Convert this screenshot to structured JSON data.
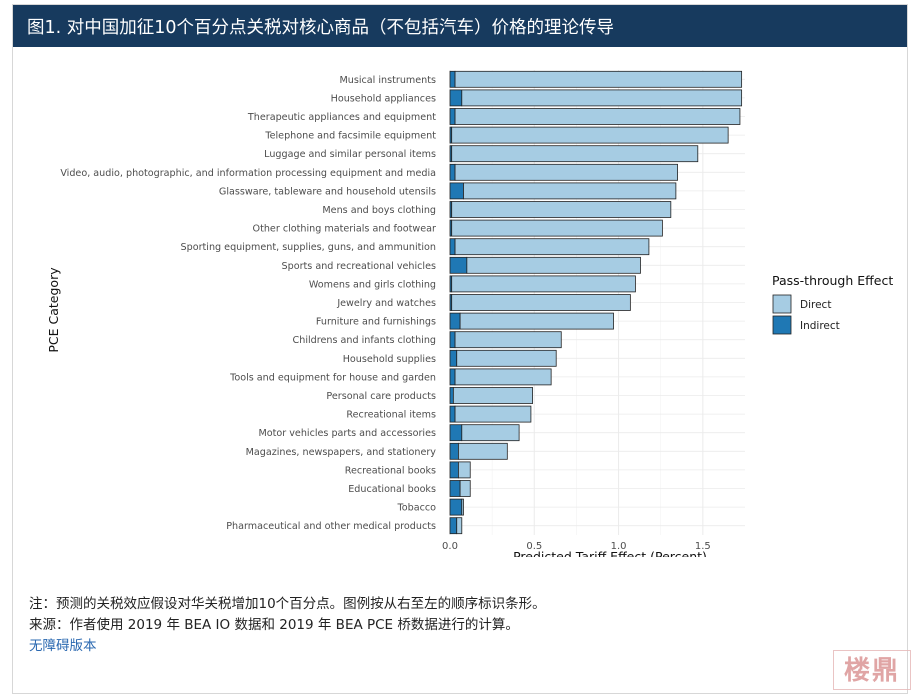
{
  "figure": {
    "title": "图1. 对中国加征10个百分点关税对核心商品（不包括汽车）价格的理论传导",
    "note": "注：预测的关税效应假设对华关税增加10个百分点。图例按从右至左的顺序标识条形。",
    "source": "来源：作者使用 2019 年 BEA IO 数据和 2019 年 BEA PCE 桥数据进行的计算。",
    "accessible_link": "无障碍版本",
    "watermark": "楼鼎"
  },
  "colors": {
    "direct": "#a6cce3",
    "indirect": "#1f78b4",
    "bar_stroke": "#222222",
    "grid": "#ebebeb",
    "title_bg": "#173a5e"
  },
  "chart_data": {
    "type": "bar",
    "orientation": "horizontal",
    "stacked": true,
    "title": "",
    "xlabel": "Predicted Tariff Effect (Percent)",
    "ylabel": "PCE Category",
    "xlim": [
      0,
      1.75
    ],
    "xticks": [
      "0.0",
      "0.5",
      "1.0",
      "1.5"
    ],
    "xtick_values": [
      0,
      0.5,
      1.0,
      1.5
    ],
    "grid": true,
    "legend": {
      "title": "Pass-through Effect",
      "position": "right"
    },
    "categories": [
      "Musical instruments",
      "Household appliances",
      "Therapeutic appliances and equipment",
      "Telephone and facsimile equipment",
      "Luggage and similar personal items",
      "Video, audio, photographic, and information processing equipment and media",
      "Glassware, tableware and household utensils",
      "Mens and boys clothing",
      "Other clothing materials and footwear",
      "Sporting equipment, supplies, guns, and ammunition",
      "Sports and recreational vehicles",
      "Womens and girls clothing",
      "Jewelry and watches",
      "Furniture and furnishings",
      "Childrens and infants clothing",
      "Household supplies",
      "Tools and equipment for house and garden",
      "Personal care products",
      "Recreational items",
      "Motor vehicles parts and accessories",
      "Magazines, newspapers, and stationery",
      "Recreational books",
      "Educational books",
      "Tobacco",
      "Pharmaceutical and other medical products"
    ],
    "series": [
      {
        "name": "Indirect",
        "values": [
          0.03,
          0.07,
          0.03,
          0.01,
          0.01,
          0.03,
          0.08,
          0.01,
          0.01,
          0.03,
          0.1,
          0.01,
          0.01,
          0.06,
          0.03,
          0.04,
          0.03,
          0.02,
          0.03,
          0.07,
          0.05,
          0.05,
          0.06,
          0.07,
          0.04
        ]
      },
      {
        "name": "Direct",
        "values": [
          1.7,
          1.66,
          1.69,
          1.64,
          1.46,
          1.32,
          1.26,
          1.3,
          1.25,
          1.15,
          1.03,
          1.09,
          1.06,
          0.91,
          0.63,
          0.59,
          0.57,
          0.47,
          0.45,
          0.34,
          0.29,
          0.07,
          0.06,
          0.01,
          0.03
        ]
      }
    ]
  }
}
